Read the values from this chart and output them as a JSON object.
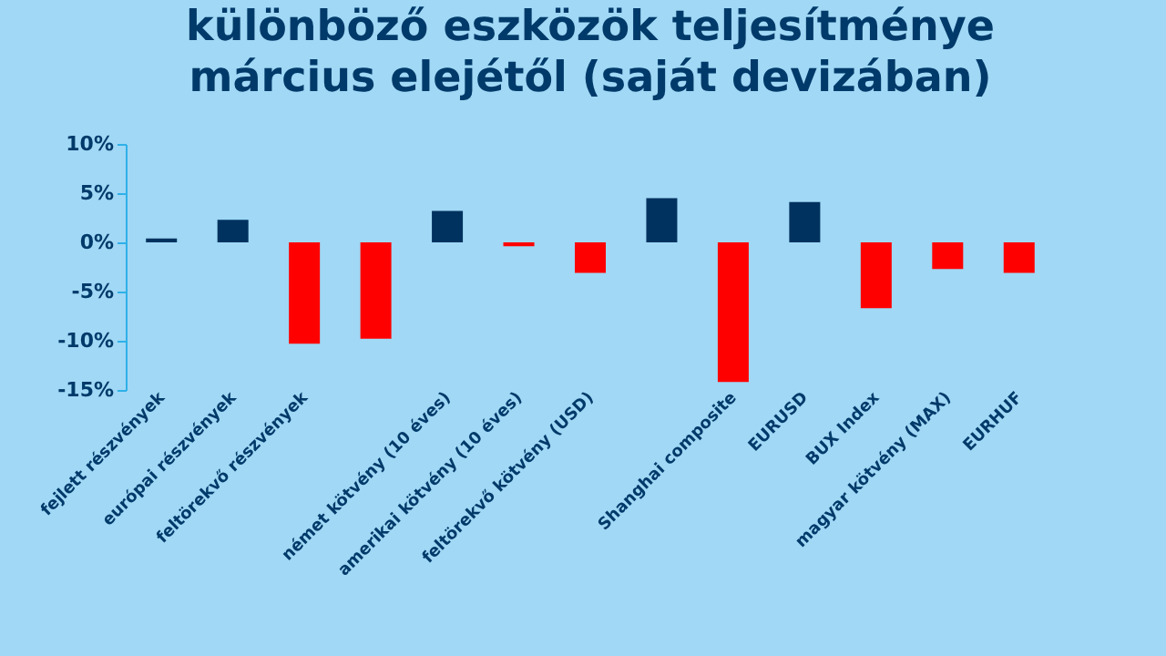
{
  "chart_data": {
    "type": "bar",
    "title": "különböző eszközök teljesítménye\nmárcius elejétől (saját devizában)",
    "categories": [
      "fejlett részvények",
      "európai részvények",
      "feltörekvő részvények",
      null,
      "német kötvény (10 éves)",
      "amerikai kötvény (10 éves)",
      "feltörekvő kötvény (USD)",
      null,
      "Shanghai composite",
      "EURUSD",
      "BUX Index",
      "magyar kötvény (MAX)",
      "EURHUF"
    ],
    "values": [
      0.4,
      2.3,
      -10.3,
      -9.8,
      3.2,
      -0.4,
      -3.1,
      4.5,
      -14.2,
      4.1,
      -6.7,
      -2.7,
      -3.1
    ],
    "colors": [
      "#00325f",
      "#00325f",
      "#ff0000",
      "#ff0000",
      "#00325f",
      "#ff0000",
      "#ff0000",
      "#00325f",
      "#ff0000",
      "#00325f",
      "#ff0000",
      "#ff0000",
      "#ff0000"
    ],
    "ylim": [
      -15,
      10
    ],
    "yticks": [
      {
        "value": -15,
        "label": "-15%"
      },
      {
        "value": -10,
        "label": "-10%"
      },
      {
        "value": -5,
        "label": "-5%"
      },
      {
        "value": 0,
        "label": "0%"
      },
      {
        "value": 5,
        "label": "5%"
      },
      {
        "value": 10,
        "label": "10%"
      }
    ],
    "grid": false
  }
}
